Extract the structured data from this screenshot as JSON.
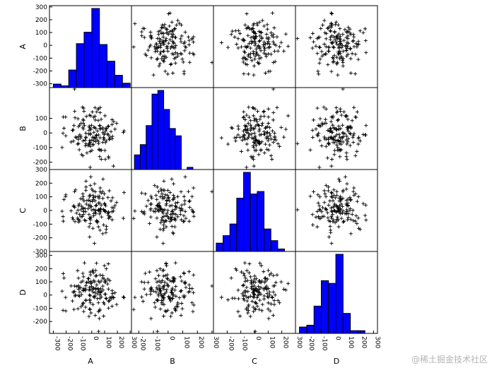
{
  "chart_data": {
    "type": "scatter-matrix",
    "variables": [
      "A",
      "B",
      "C",
      "D"
    ],
    "marker": "+",
    "histogram_color": "#0000ff",
    "axis_tick_labels": {
      "A": [
        "300",
        "200",
        "100",
        "0",
        "-100",
        "-200",
        "-300"
      ],
      "B": [
        "100",
        "0",
        "-100",
        "-200"
      ],
      "C": [
        "300",
        "200",
        "100",
        "0",
        "-100",
        "-200",
        "-300"
      ],
      "D": [
        "300",
        "200",
        "100",
        "0",
        "-100",
        "-200"
      ]
    },
    "axis_tick_values": {
      "A": [
        300,
        200,
        100,
        0,
        -100,
        -200,
        -300
      ],
      "B": [
        100,
        0,
        -100,
        -200
      ],
      "C": [
        300,
        200,
        100,
        0,
        -100,
        -200,
        -300
      ],
      "D": [
        300,
        200,
        100,
        0,
        -100,
        -200
      ]
    },
    "bottom_tick_labels": {
      "A": [
        "-300",
        "-200",
        "-100",
        "0",
        "100",
        "200",
        "300"
      ],
      "B": [
        "-200",
        "-100",
        "0",
        "100",
        "200",
        "300"
      ],
      "C": [
        "-200",
        "-100",
        "0",
        "100",
        "200",
        "300"
      ],
      "D": [
        "-200",
        "-100",
        "0",
        "100",
        "200",
        "300"
      ]
    },
    "bottom_tick_values": {
      "A": [
        -300,
        -200,
        -100,
        0,
        100,
        200,
        300
      ],
      "B": [
        -200,
        -100,
        0,
        100,
        200,
        300
      ],
      "C": [
        -200,
        -100,
        0,
        100,
        200,
        300
      ],
      "D": [
        -200,
        -100,
        0,
        100,
        200,
        300
      ]
    },
    "ranges": {
      "A": [
        -330,
        310
      ],
      "B": [
        -250,
        310
      ],
      "C": [
        -300,
        300
      ],
      "D": [
        -290,
        330
      ]
    },
    "histograms": {
      "A": {
        "edges": [
          -300,
          -240,
          -180,
          -120,
          -60,
          0,
          60,
          120,
          180,
          240,
          300
        ],
        "counts": [
          4,
          2,
          20,
          50,
          63,
          90,
          49,
          30,
          14,
          5
        ]
      },
      "B": {
        "edges": [
          -230,
          -190,
          -150,
          -110,
          -70,
          -30,
          10,
          50,
          90,
          130,
          170
        ],
        "counts": [
          20,
          34,
          60,
          103,
          108,
          82,
          56,
          46,
          0,
          3
        ]
      },
      "C": {
        "edges": [
          -280,
          -230,
          -180,
          -130,
          -80,
          -30,
          20,
          70,
          120,
          170,
          220
        ],
        "counts": [
          10,
          19,
          33,
          64,
          95,
          69,
          72,
          27,
          13,
          3
        ]
      },
      "D": {
        "edges": [
          -260,
          -205,
          -150,
          -95,
          -40,
          15,
          70,
          125,
          180,
          235,
          290
        ],
        "counts": [
          7,
          9,
          30,
          58,
          55,
          87,
          22,
          3,
          3,
          0
        ]
      }
    },
    "n_points": 150
  },
  "watermark": "@稀土掘金技术社区"
}
